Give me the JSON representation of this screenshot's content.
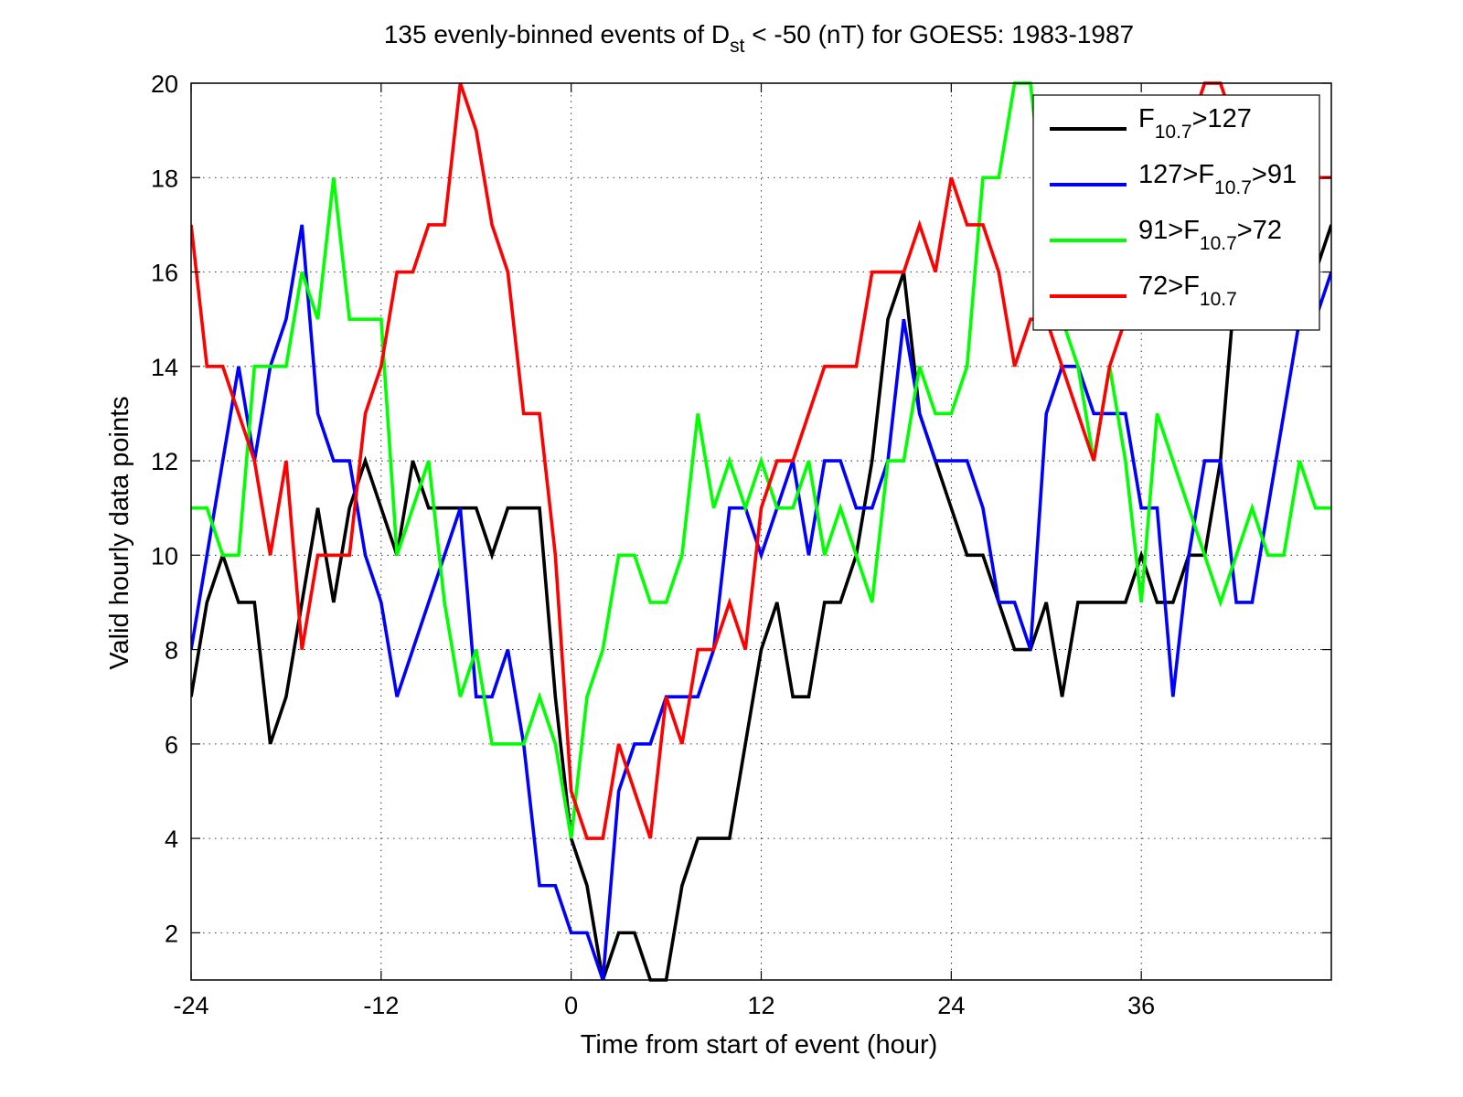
{
  "chart_data": {
    "type": "line",
    "title": {
      "prefix": "135 evenly-binned events of D",
      "subscript": "st",
      "suffix": " < -50 (nT) for GOES5: 1983-1987"
    },
    "xlabel": "Time from start of event (hour)",
    "ylabel": "Valid hourly data points",
    "xlim": [
      -24,
      48
    ],
    "ylim": [
      1,
      20
    ],
    "xticks": [
      -24,
      -12,
      0,
      12,
      24,
      36
    ],
    "yticks": [
      2,
      4,
      6,
      8,
      10,
      12,
      14,
      16,
      18,
      20
    ],
    "grid": "dotted",
    "legend_position": "top-right",
    "x": [
      -24,
      -23,
      -22,
      -21,
      -20,
      -19,
      -18,
      -17,
      -16,
      -15,
      -14,
      -13,
      -12,
      -11,
      -10,
      -9,
      -8,
      -7,
      -6,
      -5,
      -4,
      -3,
      -2,
      -1,
      0,
      1,
      2,
      3,
      4,
      5,
      6,
      7,
      8,
      9,
      10,
      11,
      12,
      13,
      14,
      15,
      16,
      17,
      18,
      19,
      20,
      21,
      22,
      23,
      24,
      25,
      26,
      27,
      28,
      29,
      30,
      31,
      32,
      33,
      34,
      35,
      36,
      37,
      38,
      39,
      40,
      41,
      42,
      43,
      44,
      45,
      46,
      47,
      48
    ],
    "series": [
      {
        "legend": {
          "pre": "F",
          "sub": "10.7",
          "post": ">127"
        },
        "color": "#000000",
        "values": [
          7,
          9,
          10,
          9,
          9,
          6,
          7,
          9,
          11,
          9,
          11,
          12,
          11,
          10,
          12,
          11,
          11,
          11,
          11,
          10,
          11,
          11,
          11,
          7,
          4,
          3,
          1,
          2,
          2,
          1,
          1,
          3,
          4,
          4,
          4,
          6,
          8,
          9,
          7,
          7,
          9,
          9,
          10,
          12,
          15,
          16,
          13,
          12,
          11,
          10,
          10,
          9,
          8,
          8,
          9,
          7,
          9,
          9,
          9,
          9,
          10,
          9,
          9,
          10,
          10,
          12,
          16,
          15,
          15,
          15,
          15,
          16,
          17
        ]
      },
      {
        "legend": {
          "pre": "127>F",
          "sub": "10.7",
          "post": ">91"
        },
        "color": "#0000ff",
        "values": [
          8,
          10,
          12,
          14,
          12,
          14,
          15,
          17,
          13,
          12,
          12,
          10,
          9,
          7,
          8,
          9,
          10,
          11,
          7,
          7,
          8,
          6,
          3,
          3,
          2,
          2,
          1,
          5,
          6,
          6,
          7,
          7,
          7,
          8,
          11,
          11,
          10,
          11,
          12,
          10,
          12,
          12,
          11,
          11,
          12,
          15,
          13,
          12,
          12,
          12,
          11,
          9,
          9,
          8,
          13,
          14,
          14,
          13,
          13,
          13,
          11,
          11,
          7,
          10,
          12,
          12,
          9,
          9,
          11,
          13,
          15,
          15,
          16
        ]
      },
      {
        "legend": {
          "pre": "91>F",
          "sub": "10.7",
          "post": ">72"
        },
        "color": "#00ff00",
        "values": [
          11,
          11,
          10,
          10,
          14,
          14,
          14,
          16,
          15,
          18,
          15,
          15,
          15,
          10,
          11,
          12,
          9,
          7,
          8,
          6,
          6,
          6,
          7,
          6,
          4,
          7,
          8,
          10,
          10,
          9,
          9,
          10,
          13,
          11,
          12,
          11,
          12,
          11,
          11,
          12,
          10,
          11,
          10,
          9,
          12,
          12,
          14,
          13,
          13,
          14,
          18,
          18,
          20,
          20,
          17,
          15,
          14,
          12,
          14,
          12,
          9,
          13,
          12,
          11,
          10,
          9,
          10,
          11,
          10,
          10,
          12,
          11,
          11
        ]
      },
      {
        "legend": {
          "pre": "72>F",
          "sub": "10.7",
          "post": ""
        },
        "color": "#ff0000",
        "values": [
          17,
          14,
          14,
          13,
          12,
          10,
          12,
          8,
          10,
          10,
          10,
          13,
          14,
          16,
          16,
          17,
          17,
          20,
          19,
          17,
          16,
          13,
          13,
          10,
          5,
          4,
          4,
          6,
          5,
          4,
          7,
          6,
          8,
          8,
          9,
          8,
          11,
          12,
          12,
          13,
          14,
          14,
          14,
          16,
          16,
          16,
          17,
          16,
          18,
          17,
          17,
          16,
          14,
          15,
          15,
          14,
          13,
          12,
          14,
          15,
          16,
          17,
          18,
          19,
          20,
          20,
          19,
          19,
          18,
          18,
          17,
          18,
          18
        ]
      }
    ]
  }
}
